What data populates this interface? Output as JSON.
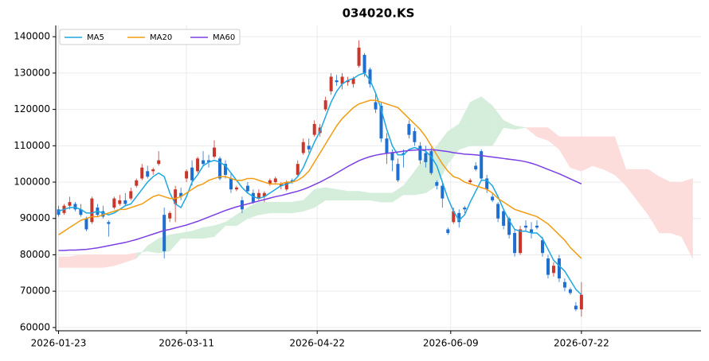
{
  "chart_data": {
    "type": "candlestick",
    "title": "034020.KS",
    "x": [
      0,
      2,
      4,
      6,
      8,
      10,
      12,
      14,
      16,
      18,
      20,
      22,
      24,
      26,
      28,
      30,
      32,
      34,
      36,
      38,
      40,
      42,
      44,
      46,
      48,
      50,
      52,
      54,
      56,
      58,
      60,
      62,
      64,
      66,
      68,
      70,
      72,
      74,
      76,
      78,
      80,
      82,
      84,
      86,
      88,
      90,
      92,
      94,
      96,
      98,
      100,
      102,
      104,
      106,
      108,
      110,
      112,
      114,
      116,
      118,
      120,
      122,
      124,
      126,
      128,
      130,
      132,
      134,
      136,
      138,
      140,
      142,
      144,
      146,
      148,
      150,
      152,
      154,
      156,
      158,
      160,
      162,
      164,
      166,
      168,
      170,
      172,
      174,
      176,
      178,
      180,
      182,
      184,
      186,
      188
    ],
    "open": [
      92500,
      91500,
      93500,
      94000,
      92500,
      90000,
      89000,
      93000,
      92000,
      89000,
      93000,
      94000,
      95000,
      95500,
      99000,
      101000,
      103000,
      103000,
      105000,
      91000,
      90000,
      94000,
      97000,
      101000,
      104000,
      103000,
      106000,
      106000,
      107000,
      106500,
      105000,
      101000,
      98000,
      95000,
      99000,
      97000,
      95500,
      96000,
      99500,
      100000,
      99000,
      98000,
      100500,
      102000,
      108000,
      110000,
      113000,
      113500,
      120000,
      125000,
      128000,
      127000,
      127500,
      127000,
      132000,
      135000,
      131000,
      122000,
      121000,
      112000,
      108000,
      105000,
      108000,
      116000,
      114000,
      110000,
      108000,
      108500,
      100000,
      99000,
      87000,
      89000,
      91500,
      93000,
      100000,
      104500,
      108500,
      101000,
      96000,
      94000,
      92000,
      90000,
      86000,
      80500,
      88000,
      87000,
      88000,
      84000,
      79000,
      75000,
      79000,
      72500,
      70500,
      66000,
      65000
    ],
    "high": [
      93500,
      94000,
      96000,
      94500,
      94000,
      90500,
      96000,
      94000,
      93500,
      89500,
      96000,
      96500,
      97000,
      98500,
      101000,
      105000,
      104500,
      104000,
      108500,
      93000,
      92000,
      99000,
      98500,
      103500,
      106000,
      107000,
      108500,
      107500,
      111500,
      107000,
      106000,
      102500,
      99000,
      96000,
      100000,
      98000,
      98000,
      97500,
      101000,
      101500,
      100000,
      100500,
      101000,
      106000,
      112000,
      112000,
      117000,
      116000,
      123500,
      130000,
      129500,
      130000,
      129000,
      129000,
      139000,
      135500,
      131500,
      124500,
      122000,
      113500,
      109000,
      106500,
      109000,
      117000,
      115000,
      111000,
      110000,
      109500,
      100500,
      100500,
      87500,
      93000,
      92500,
      93500,
      101000,
      105500,
      109000,
      102000,
      97000,
      94500,
      92500,
      90500,
      87000,
      88000,
      89500,
      89000,
      89500,
      85000,
      80000,
      78000,
      80000,
      73500,
      71000,
      67000,
      72500
    ],
    "low": [
      90500,
      91000,
      92500,
      92000,
      90500,
      86500,
      88500,
      90500,
      90000,
      85000,
      92500,
      93500,
      93500,
      95000,
      98500,
      100500,
      101000,
      102000,
      104500,
      79000,
      89000,
      89000,
      95000,
      100000,
      99000,
      102500,
      104500,
      104000,
      106500,
      100500,
      101000,
      97000,
      97500,
      91500,
      97000,
      94000,
      95000,
      94500,
      99000,
      99500,
      98000,
      97500,
      99500,
      101500,
      107500,
      108000,
      112500,
      112500,
      119500,
      124000,
      126500,
      125500,
      126500,
      126000,
      131500,
      129000,
      126000,
      119000,
      111000,
      105000,
      103000,
      100000,
      104000,
      112000,
      110000,
      105000,
      104000,
      102000,
      98000,
      93000,
      85500,
      88500,
      87500,
      91500,
      99500,
      103000,
      100500,
      97000,
      94500,
      89000,
      87000,
      84500,
      79500,
      80000,
      86500,
      84500,
      87000,
      79500,
      73500,
      74000,
      72500,
      70000,
      69000,
      64500,
      63000
    ],
    "close": [
      91000,
      93500,
      94500,
      92500,
      91000,
      87000,
      95500,
      91000,
      90500,
      88500,
      95500,
      95000,
      94000,
      97500,
      100500,
      104000,
      101500,
      103500,
      106000,
      81000,
      91500,
      98000,
      96000,
      103000,
      100500,
      106500,
      105000,
      105500,
      109500,
      101000,
      102000,
      98000,
      98500,
      92500,
      97500,
      94500,
      97000,
      97000,
      100500,
      101000,
      99500,
      100000,
      100000,
      105000,
      111000,
      109000,
      116000,
      115000,
      122500,
      129000,
      127500,
      129000,
      128000,
      128500,
      137000,
      130000,
      127000,
      120000,
      112000,
      108000,
      106000,
      100500,
      107500,
      113000,
      111000,
      106000,
      105500,
      102500,
      99000,
      95500,
      86000,
      92000,
      89000,
      92500,
      100500,
      103500,
      101000,
      98000,
      95000,
      90000,
      88000,
      85500,
      80500,
      87000,
      87500,
      86000,
      87500,
      80500,
      74500,
      77000,
      73500,
      71000,
      69500,
      65000,
      69000
    ],
    "up_color": "#c9372c",
    "down_color": "#1f6fd0",
    "series": [
      {
        "name": "MA5",
        "color": "#1ea7e1",
        "values": [
          92000,
          92500,
          93000,
          93000,
          92500,
          91500,
          91500,
          92000,
          91500,
          91000,
          91500,
          92500,
          93500,
          94000,
          96000,
          98000,
          100000,
          101500,
          102500,
          101500,
          97000,
          94000,
          93000,
          96000,
          100000,
          102000,
          104500,
          105500,
          106000,
          105500,
          104500,
          102500,
          100500,
          98500,
          97000,
          96000,
          95500,
          96000,
          97000,
          98000,
          99000,
          99500,
          100000,
          101500,
          104000,
          107500,
          111000,
          114000,
          118000,
          122000,
          125000,
          127000,
          128000,
          128500,
          129500,
          130000,
          128000,
          124500,
          120000,
          114500,
          110000,
          107500,
          107500,
          109000,
          109500,
          109000,
          108500,
          107000,
          104500,
          100000,
          95500,
          92000,
          89500,
          91000,
          94500,
          97500,
          100500,
          100500,
          99000,
          96000,
          92500,
          89500,
          87000,
          86500,
          86500,
          86000,
          86000,
          84500,
          81500,
          78500,
          77000,
          75500,
          73000,
          70500,
          69000
        ]
      },
      {
        "name": "MA20",
        "color": "#f39c12",
        "values": [
          85500,
          86500,
          87500,
          88500,
          89500,
          90000,
          90500,
          90500,
          91000,
          91500,
          92000,
          92500,
          92500,
          93000,
          93500,
          94000,
          95000,
          96000,
          96500,
          96000,
          95500,
          95500,
          96000,
          97000,
          98000,
          99000,
          99500,
          100500,
          101000,
          101500,
          101500,
          101000,
          100500,
          100500,
          101000,
          101000,
          100500,
          100000,
          99500,
          99500,
          99500,
          100000,
          100000,
          100500,
          101500,
          103000,
          105500,
          108000,
          110500,
          113000,
          115500,
          117500,
          119000,
          120500,
          121500,
          122000,
          122500,
          122500,
          122000,
          121500,
          121000,
          120500,
          119000,
          117500,
          116000,
          114500,
          112500,
          110000,
          107500,
          105000,
          103000,
          101500,
          101000,
          100000,
          99500,
          99000,
          98500,
          98000,
          97000,
          95500,
          94500,
          93500,
          92500,
          92000,
          91500,
          91000,
          90500,
          89500,
          88500,
          87000,
          85500,
          84000,
          82000,
          80500,
          79000
        ]
      },
      {
        "name": "MA60",
        "color": "#7b3fe4",
        "values": [
          81200,
          81200,
          81300,
          81300,
          81400,
          81500,
          81700,
          81900,
          82200,
          82500,
          82800,
          83100,
          83400,
          83800,
          84200,
          84700,
          85200,
          85700,
          86200,
          86700,
          87000,
          87400,
          87800,
          88200,
          88700,
          89200,
          89800,
          90400,
          91000,
          91600,
          92200,
          92700,
          93200,
          93600,
          94000,
          94400,
          94800,
          95200,
          95600,
          96000,
          96300,
          96700,
          97100,
          97500,
          98000,
          98600,
          99300,
          100000,
          100800,
          101600,
          102500,
          103400,
          104300,
          105100,
          105900,
          106500,
          107000,
          107400,
          107700,
          107900,
          108100,
          108300,
          108500,
          108700,
          108800,
          108900,
          108900,
          108900,
          108800,
          108600,
          108400,
          108100,
          107900,
          107700,
          107600,
          107500,
          107300,
          107100,
          106900,
          106700,
          106500,
          106300,
          106100,
          105900,
          105600,
          105200,
          104700,
          104100,
          103500,
          102900,
          102300,
          101600,
          100900,
          100200,
          99500
        ]
      }
    ],
    "cloud": {
      "x": [
        0,
        4,
        8,
        12,
        16,
        20,
        24,
        28,
        32,
        36,
        40,
        44,
        48,
        52,
        56,
        60,
        64,
        68,
        72,
        76,
        80,
        84,
        88,
        92,
        96,
        100,
        104,
        108,
        112,
        116,
        120,
        124,
        128,
        132,
        136,
        140,
        144,
        148,
        152,
        156,
        160,
        164,
        168,
        172,
        176,
        180,
        184,
        188,
        192,
        196,
        200,
        204,
        208,
        212,
        216,
        220,
        224,
        228
      ],
      "span_a": [
        76500,
        76500,
        76500,
        76500,
        76500,
        77000,
        78000,
        79000,
        82500,
        84500,
        85500,
        86000,
        86500,
        87500,
        88000,
        89000,
        91000,
        93000,
        94500,
        94500,
        94500,
        94500,
        95000,
        98000,
        98500,
        98000,
        97500,
        97500,
        97000,
        97000,
        97000,
        99000,
        103000,
        107000,
        110000,
        114000,
        116000,
        122000,
        123500,
        121000,
        117000,
        115500,
        115000,
        112500,
        111500,
        109000,
        104000,
        103000,
        104500,
        103500,
        102000,
        99000,
        95000,
        91000,
        86000,
        86000,
        85000,
        79000
      ],
      "span_b": [
        79500,
        79500,
        80000,
        80000,
        80000,
        80000,
        80000,
        80500,
        81000,
        80500,
        81000,
        84500,
        84500,
        84500,
        85000,
        88000,
        88000,
        90000,
        91000,
        91500,
        91500,
        91500,
        92000,
        93000,
        95000,
        95000,
        95000,
        95000,
        95000,
        94500,
        94500,
        96500,
        96500,
        97000,
        99000,
        105000,
        109000,
        110000,
        110000,
        110000,
        115000,
        114500,
        115000,
        115000,
        115000,
        112500,
        112500,
        112500,
        112500,
        112500,
        112500,
        103500,
        103500,
        103500,
        101500,
        100000,
        100000,
        101000
      ],
      "up_color": "#d5eedb",
      "down_color": "#fddcdc"
    },
    "xlim": [
      -1,
      231
    ],
    "xticks": [
      {
        "value": 0,
        "label": "2026-01-23"
      },
      {
        "value": 46,
        "label": "2026-03-11"
      },
      {
        "value": 93,
        "label": "2026-04-22"
      },
      {
        "value": 141,
        "label": "2026-06-09"
      },
      {
        "value": 188,
        "label": "2026-07-22"
      }
    ],
    "ylim": [
      59100,
      143100
    ],
    "yticks": [
      60000,
      70000,
      80000,
      90000,
      100000,
      110000,
      120000,
      130000,
      140000
    ],
    "grid": true,
    "legend": "upper left"
  }
}
